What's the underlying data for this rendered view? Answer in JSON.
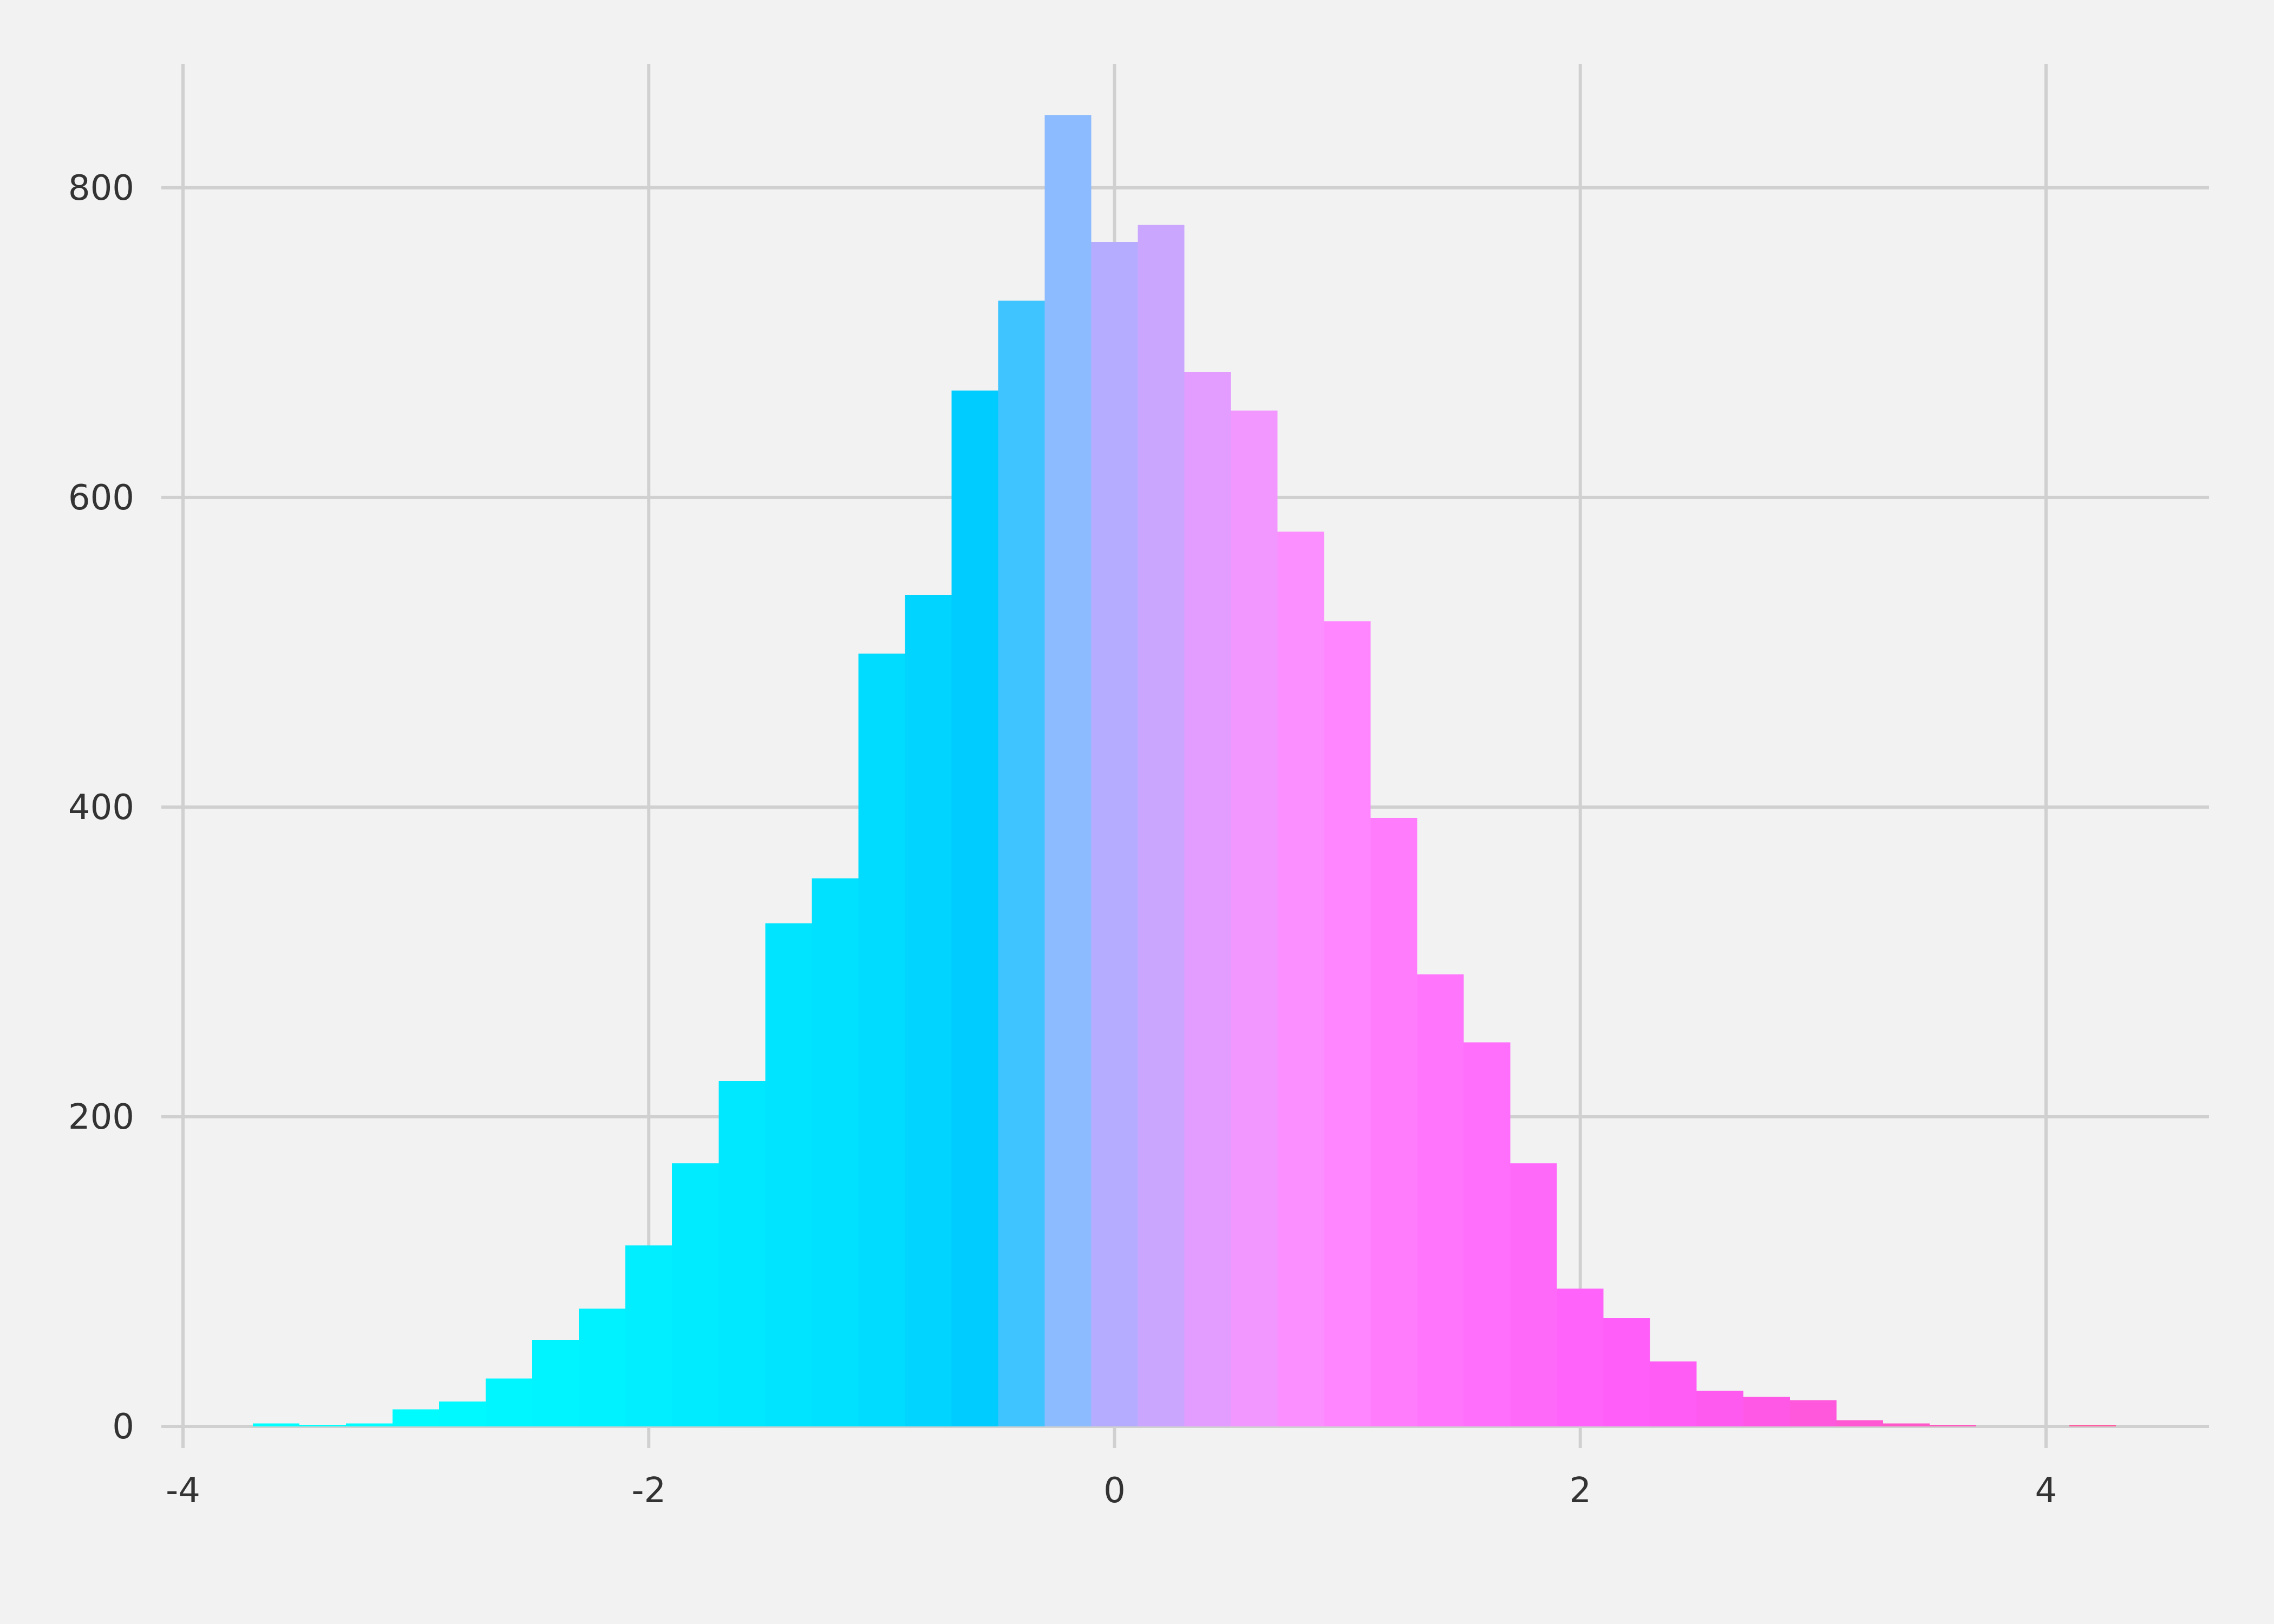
{
  "chart_data": {
    "type": "bar",
    "title": "",
    "xlabel": "",
    "ylabel": "",
    "xlim": [
      -4,
      4.7
    ],
    "ylim": [
      0,
      880
    ],
    "grid": true,
    "x_ticks": [
      "-4",
      "-2",
      "0",
      "2",
      "4"
    ],
    "y_ticks": [
      "0",
      "200",
      "400",
      "600",
      "800"
    ],
    "bin_width": 0.2,
    "bins": [
      {
        "start": -3.7,
        "end": -3.5,
        "value": 2,
        "color": "#00ffff"
      },
      {
        "start": -3.5,
        "end": -3.3,
        "value": 1,
        "color": "#00ffff"
      },
      {
        "start": -3.3,
        "end": -3.1,
        "value": 2,
        "color": "#00fdff"
      },
      {
        "start": -3.1,
        "end": -2.9,
        "value": 11,
        "color": "#00fbff"
      },
      {
        "start": -2.9,
        "end": -2.7,
        "value": 16,
        "color": "#00f9ff"
      },
      {
        "start": -2.7,
        "end": -2.5,
        "value": 31,
        "color": "#00f6ff"
      },
      {
        "start": -2.5,
        "end": -2.3,
        "value": 56,
        "color": "#00f4ff"
      },
      {
        "start": -2.3,
        "end": -2.1,
        "value": 76,
        "color": "#00f1ff"
      },
      {
        "start": -2.1,
        "end": -1.9,
        "value": 117,
        "color": "#00eeff"
      },
      {
        "start": -1.9,
        "end": -1.7,
        "value": 170,
        "color": "#00ebff"
      },
      {
        "start": -1.7,
        "end": -1.5,
        "value": 223,
        "color": "#00e8ff"
      },
      {
        "start": -1.5,
        "end": -1.3,
        "value": 325,
        "color": "#00e4ff"
      },
      {
        "start": -1.3,
        "end": -1.1,
        "value": 354,
        "color": "#00e0ff"
      },
      {
        "start": -1.1,
        "end": -0.9,
        "value": 499,
        "color": "#00dcff"
      },
      {
        "start": -0.9,
        "end": -0.7,
        "value": 537,
        "color": "#00d4ff"
      },
      {
        "start": -0.7,
        "end": -0.5,
        "value": 669,
        "color": "#00ccff"
      },
      {
        "start": -0.5,
        "end": -0.3,
        "value": 727,
        "color": "#3fc4ff"
      },
      {
        "start": -0.3,
        "end": -0.1,
        "value": 847,
        "color": "#8cbbff"
      },
      {
        "start": -0.1,
        "end": 0.1,
        "value": 765,
        "color": "#b6acff"
      },
      {
        "start": 0.1,
        "end": 0.3,
        "value": 776,
        "color": "#cba6ff"
      },
      {
        "start": 0.3,
        "end": 0.5,
        "value": 681,
        "color": "#e39cff"
      },
      {
        "start": 0.5,
        "end": 0.7,
        "value": 656,
        "color": "#f197ff"
      },
      {
        "start": 0.7,
        "end": 0.9,
        "value": 578,
        "color": "#fb8fff"
      },
      {
        "start": 0.9,
        "end": 1.1,
        "value": 520,
        "color": "#ff86ff"
      },
      {
        "start": 1.1,
        "end": 1.3,
        "value": 393,
        "color": "#ff7dfd"
      },
      {
        "start": 1.3,
        "end": 1.5,
        "value": 292,
        "color": "#ff75fc"
      },
      {
        "start": 1.5,
        "end": 1.7,
        "value": 248,
        "color": "#ff6ffb"
      },
      {
        "start": 1.7,
        "end": 1.9,
        "value": 170,
        "color": "#ff69fa"
      },
      {
        "start": 1.9,
        "end": 2.1,
        "value": 89,
        "color": "#ff63f9"
      },
      {
        "start": 2.1,
        "end": 2.3,
        "value": 70,
        "color": "#ff5ff8"
      },
      {
        "start": 2.3,
        "end": 2.5,
        "value": 42,
        "color": "#ff5cf6"
      },
      {
        "start": 2.5,
        "end": 2.7,
        "value": 23,
        "color": "#ff5af0"
      },
      {
        "start": 2.7,
        "end": 2.9,
        "value": 19,
        "color": "#ff58e6"
      },
      {
        "start": 2.9,
        "end": 3.1,
        "value": 17,
        "color": "#ff58dc"
      },
      {
        "start": 3.1,
        "end": 3.3,
        "value": 4,
        "color": "#ff58d2"
      },
      {
        "start": 3.3,
        "end": 3.5,
        "value": 2,
        "color": "#ff58c8"
      },
      {
        "start": 3.5,
        "end": 3.7,
        "value": 1,
        "color": "#ff58be"
      },
      {
        "start": 4.1,
        "end": 4.3,
        "value": 1,
        "color": "#ff5fa0"
      }
    ]
  }
}
